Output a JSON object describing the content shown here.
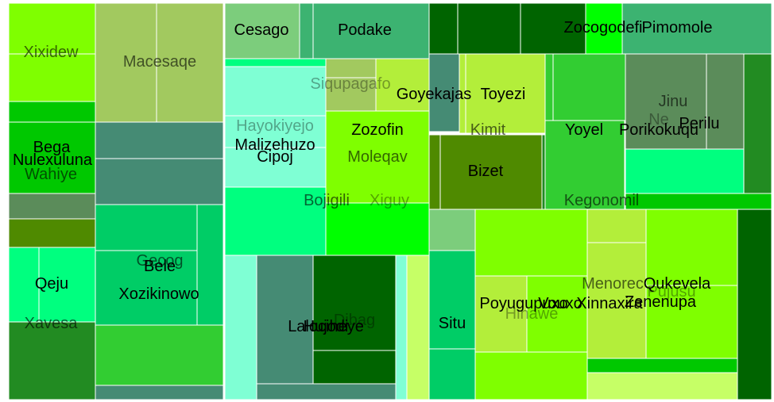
{
  "chart_data": {
    "type": "treemap",
    "title": "",
    "colors": {
      "lime": "#7FFF00",
      "yellowgreen": "#9ACD32",
      "olive_green": "#A2C95F",
      "green": "#00C800",
      "dark_green": "#006400",
      "forest": "#228B22",
      "sea": "#3CB371",
      "teal": "#458B74",
      "aqua": "#7FFFD4",
      "spring": "#00FF7F",
      "mint": "#00CD66",
      "pale_lime": "#B3EE3A",
      "dull_green": "#5B8C5A",
      "olive": "#4F8A00",
      "bright_green": "#00FF00",
      "light_green": "#32CD32",
      "pale_green": "#7CCD7C",
      "chartreuse_light": "#C6FF66"
    },
    "cells": [
      {
        "name": "Xixidew",
        "color": "lime",
        "value": 12
      },
      {
        "name": "Macesaqe",
        "color": "olive_green",
        "value": 30
      },
      {
        "name": "Bega",
        "color": "green",
        "value": 8
      },
      {
        "name": "Nulexuluna",
        "color": "teal",
        "value": 6
      },
      {
        "name": "Wahiye",
        "color": "olive",
        "value": 4
      },
      {
        "name": "Qeju",
        "color": "spring",
        "value": 9
      },
      {
        "name": "Xavesa",
        "color": "forest",
        "value": 9
      },
      {
        "name": "Bele",
        "color": "mint",
        "value": 12
      },
      {
        "name": "Xozikinowo",
        "color": "mint",
        "value": 10
      },
      {
        "name": "Gecog",
        "color": "light_green",
        "value": 6
      },
      {
        "name": "Cesago",
        "color": "pale_green",
        "value": 7
      },
      {
        "name": "Podake",
        "color": "sea",
        "value": 10
      },
      {
        "name": "Siqupagafo",
        "color": "aqua",
        "value": 5
      },
      {
        "name": "Hayokiyejo",
        "color": "aqua",
        "value": 5
      },
      {
        "name": "Malizehuzo",
        "color": "aqua",
        "value": 8
      },
      {
        "name": "Cipoj",
        "color": "aqua",
        "value": 6
      },
      {
        "name": "Bojigili",
        "color": "spring",
        "value": 6
      },
      {
        "name": "Goyekajas",
        "color": "pale_lime",
        "value": 5
      },
      {
        "name": "Zozofin",
        "color": "lime",
        "value": 8
      },
      {
        "name": "Moleqav",
        "color": "lime",
        "value": 7
      },
      {
        "name": "Xiguy",
        "color": "bright_green",
        "value": 5
      },
      {
        "name": "Lalociheye",
        "color": "teal",
        "value": 10
      },
      {
        "name": "Hujodi",
        "color": "dark_green",
        "value": 9
      },
      {
        "name": "Dibag",
        "color": "dark_green",
        "value": 4
      },
      {
        "name": "Zocogodefi",
        "color": "dark_green",
        "value": 8
      },
      {
        "name": "Pimomole",
        "color": "sea",
        "value": 8
      },
      {
        "name": "Toyezi",
        "color": "pale_lime",
        "value": 6
      },
      {
        "name": "Kimit",
        "color": "pale_lime",
        "value": 5
      },
      {
        "name": "Bizet",
        "color": "olive",
        "value": 8
      },
      {
        "name": "Yoyel",
        "color": "light_green",
        "value": 7
      },
      {
        "name": "Porikokuqu",
        "color": "light_green",
        "value": 6
      },
      {
        "name": "Jinu",
        "color": "dull_green",
        "value": 6
      },
      {
        "name": "Ne",
        "color": "dull_green",
        "value": 3
      },
      {
        "name": "Perilu",
        "color": "dull_green",
        "value": 5
      },
      {
        "name": "Kegonomil",
        "color": "light_green",
        "value": 7
      },
      {
        "name": "Situ",
        "color": "mint",
        "value": 7
      },
      {
        "name": "Poyugupuxo",
        "color": "pale_lime",
        "value": 7
      },
      {
        "name": "Vouxo",
        "color": "lime",
        "value": 6
      },
      {
        "name": "Hinawe",
        "color": "pale_lime",
        "value": 6
      },
      {
        "name": "Menorec",
        "color": "pale_lime",
        "value": 6
      },
      {
        "name": "Xinnaxira",
        "color": "lime",
        "value": 5
      },
      {
        "name": "Qukevela",
        "color": "lime",
        "value": 8
      },
      {
        "name": "Zenenupa",
        "color": "lime",
        "value": 8
      },
      {
        "name": "Pujusu",
        "color": "lime",
        "value": 5
      }
    ]
  }
}
